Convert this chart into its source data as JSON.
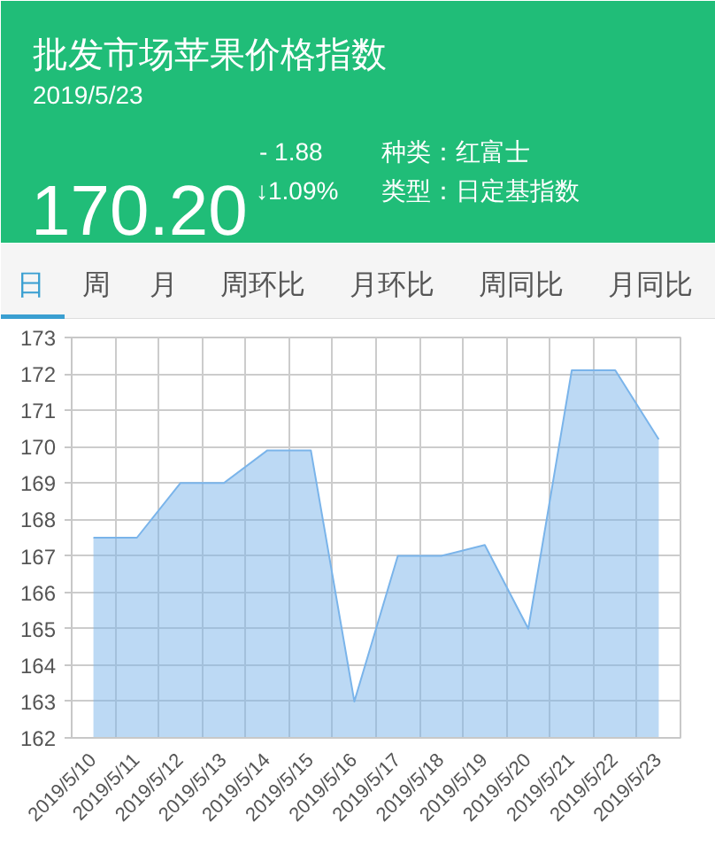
{
  "chart_data": {
    "type": "area",
    "title": "批发市场苹果价格指数",
    "subtitle": "2019/5/23",
    "annotations": [
      "170.20",
      "- 1.88",
      "↓1.09%",
      "种类：红富士",
      "类型：日定基指数",
      "日",
      "周",
      "月",
      "周环比",
      "月环比",
      "周同比",
      "月同比"
    ],
    "categories": [
      "2019/5/10",
      "2019/5/11",
      "2019/5/12",
      "2019/5/13",
      "2019/5/14",
      "2019/5/15",
      "2019/5/16",
      "2019/5/17",
      "2019/5/18",
      "2019/5/19",
      "2019/5/20",
      "2019/5/21",
      "2019/5/22",
      "2019/5/23"
    ],
    "series": [
      {
        "color": "#7ab4ea",
        "values": [
          167.5,
          167.5,
          169.0,
          169.0,
          169.9,
          169.9,
          163.0,
          167.0,
          167.0,
          167.3,
          165.0,
          172.1,
          172.1,
          170.2
        ]
      }
    ],
    "ylim": [
      162,
      173
    ],
    "yticks": [
      162,
      163,
      164,
      165,
      166,
      167,
      168,
      169,
      170,
      171,
      172,
      173
    ],
    "grid": true
  }
}
